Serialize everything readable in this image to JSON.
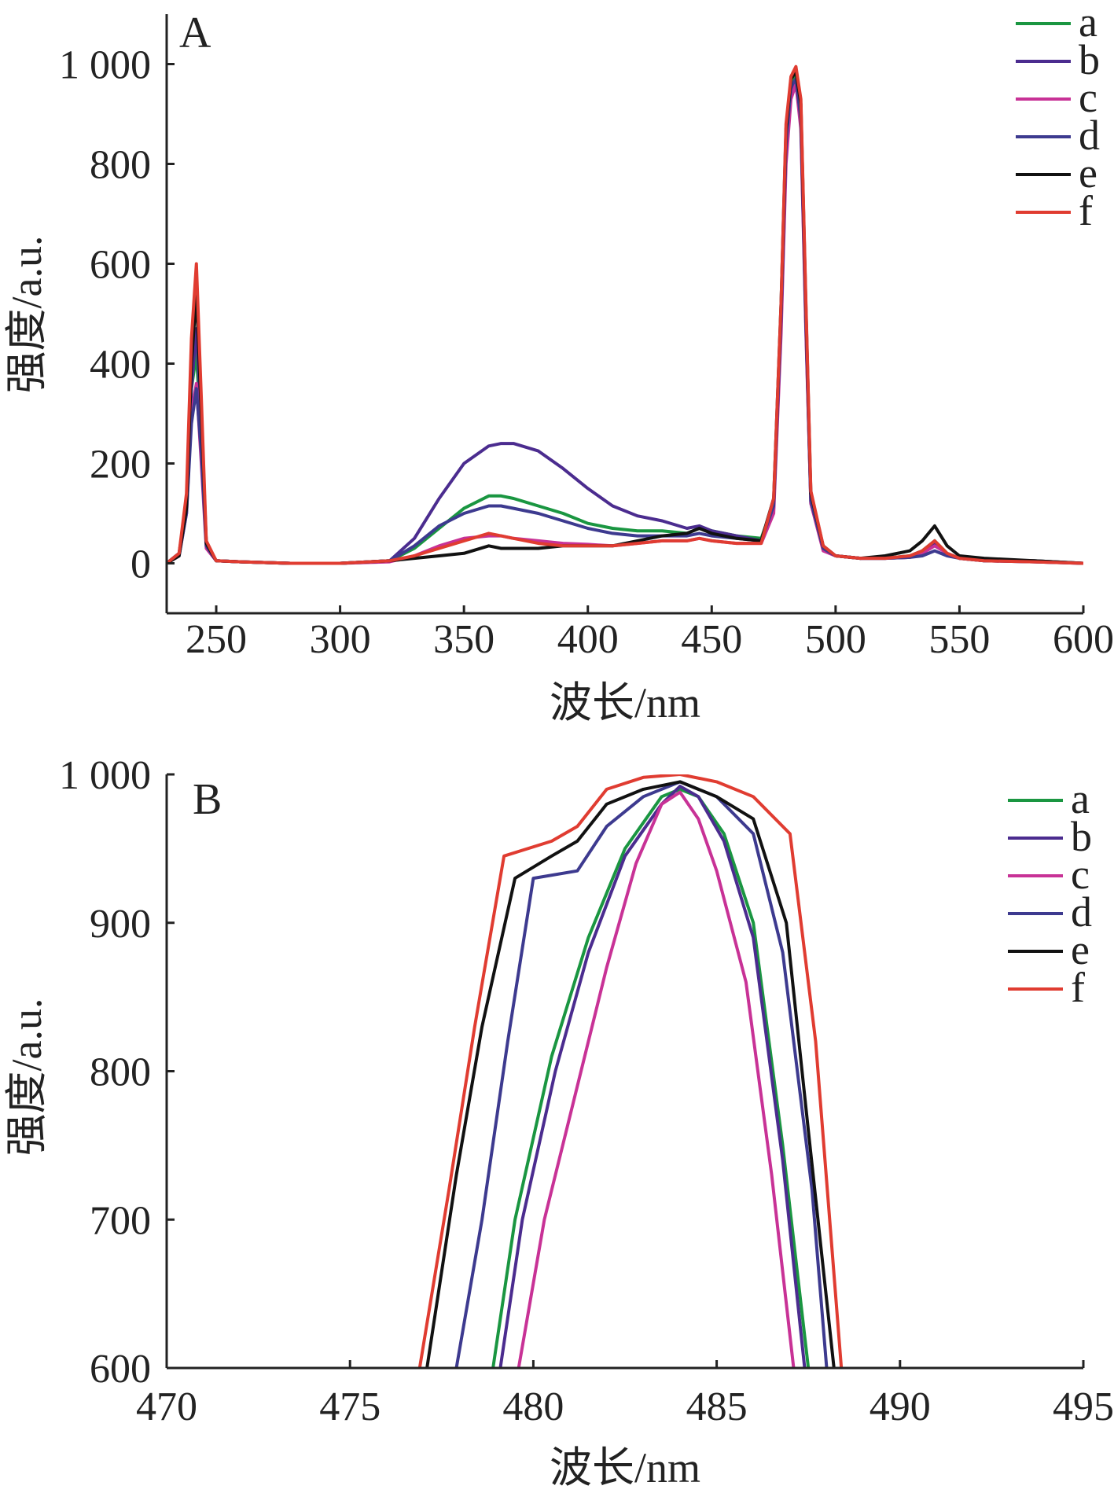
{
  "chart_data": [
    {
      "panel": "A",
      "type": "line",
      "xlabel": "波长/nm",
      "ylabel": "强度/a.u.",
      "xlim": [
        230,
        600
      ],
      "ylim": [
        -100,
        1100
      ],
      "xticks": [
        250,
        300,
        350,
        400,
        450,
        500,
        550,
        600
      ],
      "xtick_labels": [
        "250",
        "300",
        "350",
        "400",
        "450",
        "500",
        "550",
        "600"
      ],
      "yticks": [
        0,
        200,
        400,
        600,
        800,
        1000
      ],
      "ytick_labels": [
        "0",
        "200",
        "400",
        "600",
        "800",
        "1 000"
      ],
      "legend_position": "top-right",
      "series": [
        {
          "name": "a",
          "color": "#1a9641",
          "x": [
            230,
            235,
            238,
            240,
            242,
            244,
            246,
            250,
            260,
            280,
            300,
            320,
            330,
            340,
            350,
            360,
            365,
            370,
            380,
            390,
            400,
            410,
            420,
            430,
            440,
            445,
            450,
            460,
            470,
            475,
            478,
            480,
            482,
            484,
            486,
            488,
            490,
            495,
            500,
            510,
            520,
            530,
            535,
            540,
            545,
            550,
            560,
            580,
            600
          ],
          "y": [
            0,
            20,
            120,
            350,
            420,
            250,
            40,
            5,
            3,
            0,
            0,
            5,
            30,
            70,
            110,
            135,
            135,
            130,
            115,
            100,
            80,
            70,
            65,
            65,
            60,
            70,
            65,
            55,
            50,
            120,
            500,
            850,
            960,
            975,
            900,
            500,
            130,
            30,
            15,
            10,
            10,
            15,
            25,
            45,
            20,
            10,
            5,
            5,
            0
          ]
        },
        {
          "name": "b",
          "color": "#4b2c8f",
          "x": [
            230,
            235,
            238,
            240,
            242,
            244,
            246,
            250,
            260,
            280,
            300,
            320,
            330,
            340,
            350,
            360,
            365,
            370,
            380,
            390,
            400,
            410,
            420,
            430,
            440,
            445,
            450,
            460,
            470,
            475,
            478,
            480,
            482,
            484,
            486,
            488,
            490,
            495,
            500,
            510,
            520,
            530,
            535,
            540,
            545,
            550,
            560,
            580,
            600
          ],
          "y": [
            0,
            20,
            120,
            350,
            470,
            280,
            40,
            5,
            3,
            0,
            0,
            5,
            50,
            130,
            200,
            235,
            240,
            240,
            225,
            190,
            150,
            115,
            95,
            85,
            70,
            75,
            65,
            55,
            45,
            110,
            480,
            820,
            950,
            965,
            880,
            480,
            120,
            30,
            15,
            10,
            10,
            12,
            20,
            40,
            20,
            10,
            5,
            5,
            0
          ]
        },
        {
          "name": "c",
          "color": "#c83296",
          "x": [
            230,
            235,
            238,
            240,
            242,
            244,
            246,
            250,
            260,
            280,
            300,
            320,
            330,
            340,
            350,
            360,
            365,
            370,
            380,
            390,
            400,
            410,
            420,
            430,
            440,
            445,
            450,
            460,
            470,
            475,
            478,
            480,
            482,
            484,
            486,
            488,
            490,
            495,
            500,
            510,
            520,
            530,
            535,
            540,
            545,
            550,
            560,
            580,
            600
          ],
          "y": [
            0,
            15,
            100,
            300,
            360,
            200,
            30,
            5,
            3,
            0,
            0,
            3,
            15,
            35,
            50,
            55,
            55,
            50,
            45,
            40,
            38,
            35,
            40,
            45,
            45,
            50,
            45,
            40,
            40,
            100,
            460,
            800,
            930,
            960,
            870,
            470,
            120,
            25,
            15,
            10,
            10,
            12,
            20,
            35,
            20,
            10,
            5,
            3,
            0
          ]
        },
        {
          "name": "d",
          "color": "#3d3a8f",
          "x": [
            230,
            235,
            238,
            240,
            242,
            244,
            246,
            250,
            260,
            280,
            300,
            320,
            330,
            340,
            350,
            360,
            365,
            370,
            380,
            390,
            400,
            410,
            420,
            430,
            440,
            445,
            450,
            460,
            470,
            475,
            478,
            480,
            482,
            484,
            486,
            488,
            490,
            495,
            500,
            510,
            520,
            530,
            535,
            540,
            545,
            550,
            560,
            580,
            600
          ],
          "y": [
            0,
            15,
            100,
            280,
            350,
            220,
            35,
            5,
            3,
            0,
            0,
            5,
            35,
            75,
            100,
            115,
            115,
            110,
            100,
            85,
            70,
            60,
            55,
            55,
            55,
            60,
            55,
            50,
            45,
            115,
            490,
            840,
            955,
            970,
            890,
            490,
            125,
            30,
            15,
            10,
            10,
            12,
            15,
            25,
            15,
            10,
            5,
            3,
            0
          ]
        },
        {
          "name": "e",
          "color": "#111111",
          "x": [
            230,
            235,
            238,
            240,
            242,
            244,
            246,
            250,
            260,
            280,
            300,
            320,
            330,
            340,
            350,
            360,
            365,
            370,
            380,
            390,
            400,
            410,
            420,
            430,
            440,
            445,
            450,
            460,
            470,
            475,
            478,
            480,
            482,
            484,
            486,
            488,
            490,
            495,
            500,
            510,
            520,
            530,
            535,
            540,
            545,
            550,
            560,
            580,
            600
          ],
          "y": [
            0,
            15,
            110,
            400,
            540,
            300,
            40,
            5,
            3,
            0,
            0,
            5,
            10,
            15,
            20,
            35,
            30,
            30,
            30,
            35,
            35,
            35,
            45,
            55,
            60,
            70,
            60,
            50,
            45,
            130,
            520,
            870,
            970,
            985,
            920,
            520,
            140,
            35,
            15,
            10,
            15,
            25,
            45,
            75,
            35,
            15,
            10,
            5,
            0
          ]
        },
        {
          "name": "f",
          "color": "#e03c31",
          "x": [
            230,
            235,
            238,
            240,
            242,
            244,
            246,
            250,
            260,
            280,
            300,
            320,
            330,
            340,
            350,
            360,
            365,
            370,
            380,
            390,
            400,
            410,
            420,
            430,
            440,
            445,
            450,
            460,
            470,
            475,
            478,
            480,
            482,
            484,
            486,
            488,
            490,
            495,
            500,
            510,
            520,
            530,
            535,
            540,
            545,
            550,
            560,
            580,
            600
          ],
          "y": [
            0,
            20,
            140,
            450,
            600,
            330,
            45,
            5,
            3,
            0,
            0,
            5,
            15,
            30,
            45,
            60,
            55,
            50,
            40,
            35,
            35,
            35,
            40,
            45,
            45,
            50,
            45,
            40,
            40,
            130,
            520,
            880,
            975,
            995,
            930,
            530,
            145,
            35,
            15,
            10,
            10,
            15,
            25,
            45,
            20,
            10,
            5,
            3,
            0
          ]
        }
      ]
    },
    {
      "panel": "B",
      "type": "line",
      "xlabel": "波长/nm",
      "ylabel": "强度/a.u.",
      "xlim": [
        470,
        495
      ],
      "ylim": [
        600,
        1000
      ],
      "xticks": [
        470,
        475,
        480,
        485,
        490,
        495
      ],
      "xtick_labels": [
        "470",
        "475",
        "480",
        "485",
        "490",
        "495"
      ],
      "yticks": [
        600,
        700,
        800,
        900,
        1000
      ],
      "ytick_labels": [
        "600",
        "700",
        "800",
        "900",
        "1 000"
      ],
      "legend_position": "top-right",
      "series": [
        {
          "name": "a",
          "color": "#1a9641",
          "x": [
            478.9,
            479.5,
            480.5,
            481.5,
            482.5,
            483.5,
            484.0,
            484.5,
            485.2,
            486.0,
            486.8,
            487.5
          ],
          "y": [
            600,
            700,
            810,
            890,
            950,
            985,
            990,
            985,
            960,
            900,
            750,
            600
          ]
        },
        {
          "name": "b",
          "color": "#4b2c8f",
          "x": [
            479.1,
            479.7,
            480.6,
            481.5,
            482.5,
            483.5,
            484.0,
            484.5,
            485.2,
            486.0,
            486.8,
            487.4
          ],
          "y": [
            600,
            700,
            800,
            880,
            945,
            980,
            992,
            985,
            955,
            890,
            740,
            600
          ]
        },
        {
          "name": "c",
          "color": "#c83296",
          "x": [
            479.6,
            480.3,
            481.2,
            482.0,
            482.8,
            483.5,
            484.0,
            484.5,
            485.0,
            485.8,
            486.5,
            487.1
          ],
          "y": [
            600,
            700,
            790,
            870,
            940,
            980,
            988,
            970,
            935,
            860,
            730,
            600
          ]
        },
        {
          "name": "d",
          "color": "#3d3a8f",
          "x": [
            477.9,
            478.6,
            479.3,
            480.0,
            481.2,
            482.0,
            483.0,
            484.0,
            485.0,
            486.0,
            486.8,
            487.6,
            488.0
          ],
          "y": [
            600,
            700,
            820,
            930,
            935,
            965,
            985,
            995,
            985,
            960,
            880,
            720,
            600
          ]
        },
        {
          "name": "e",
          "color": "#111111",
          "x": [
            477.1,
            477.9,
            478.6,
            479.5,
            480.5,
            481.2,
            482.0,
            483.0,
            484.0,
            485.0,
            486.0,
            486.9,
            487.5,
            488.2
          ],
          "y": [
            600,
            730,
            830,
            930,
            945,
            955,
            980,
            990,
            995,
            985,
            970,
            900,
            760,
            600
          ]
        },
        {
          "name": "f",
          "color": "#e03c31",
          "x": [
            476.9,
            477.7,
            478.4,
            479.2,
            480.5,
            481.2,
            482.0,
            483.0,
            484.0,
            485.0,
            486.0,
            487.0,
            487.7,
            488.4
          ],
          "y": [
            600,
            720,
            830,
            945,
            955,
            965,
            990,
            998,
            1000,
            995,
            985,
            960,
            820,
            600
          ]
        }
      ]
    }
  ]
}
